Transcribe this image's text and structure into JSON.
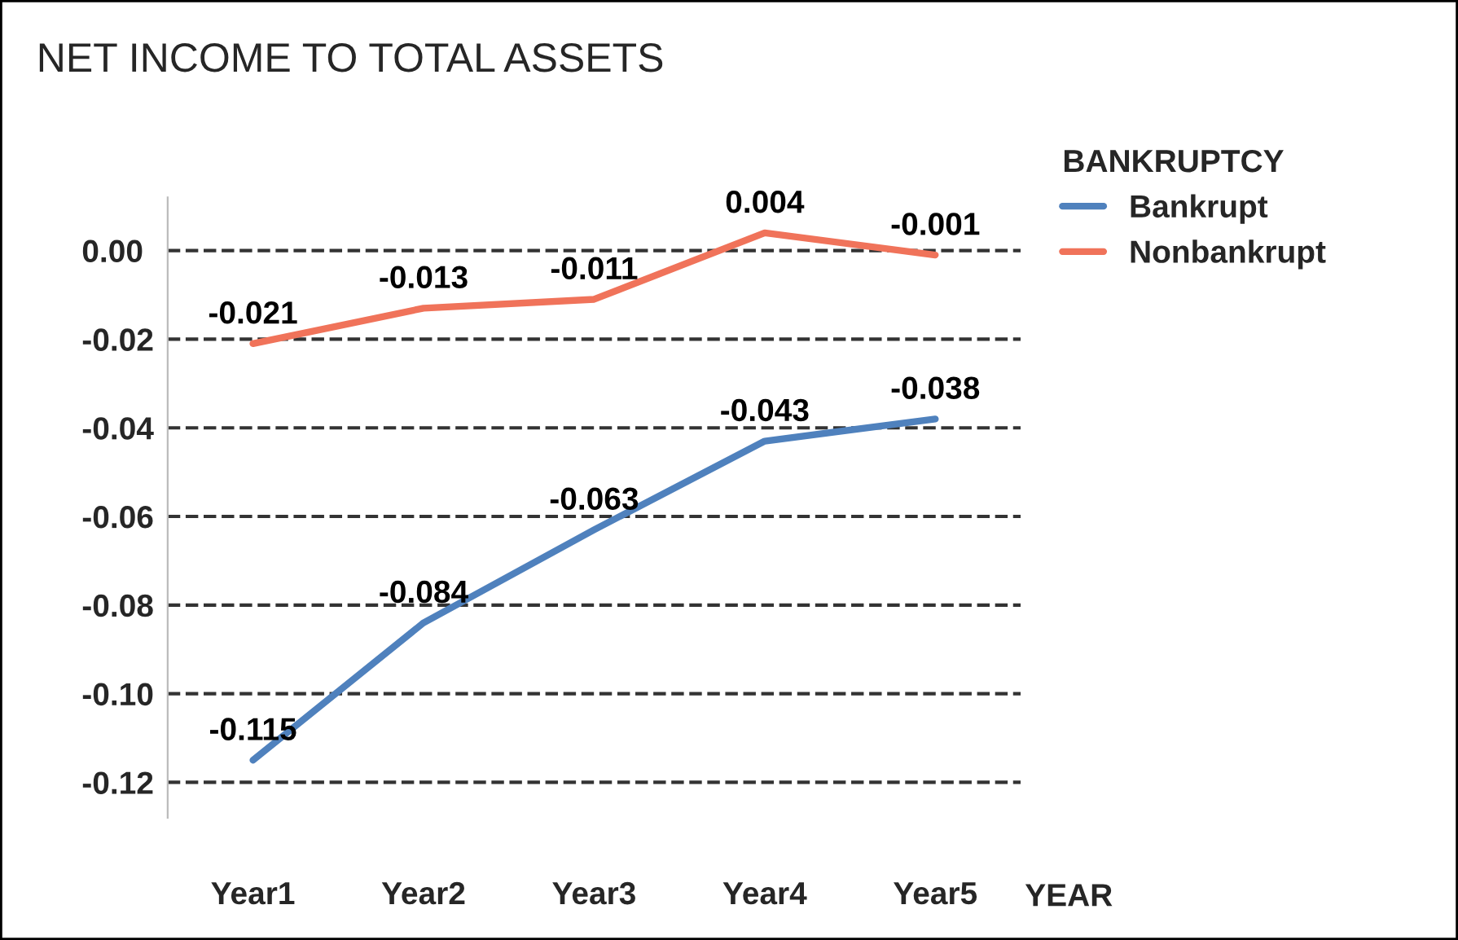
{
  "chart_data": {
    "type": "line",
    "title": "NET INCOME TO TOTAL ASSETS",
    "xlabel": "YEAR",
    "legend_title": "BANKRUPTCY",
    "categories": [
      "Year1",
      "Year2",
      "Year3",
      "Year4",
      "Year5"
    ],
    "series": [
      {
        "name": "Bankrupt",
        "color": "#4f81bd",
        "values": [
          -0.115,
          -0.084,
          -0.063,
          -0.043,
          -0.038
        ]
      },
      {
        "name": "Nonbankrupt",
        "color": "#f0735a",
        "values": [
          -0.021,
          -0.013,
          -0.011,
          0.004,
          -0.001
        ]
      }
    ],
    "ylim": [
      -0.128,
      0.012
    ],
    "yticks": [
      {
        "value": 0,
        "label": "0.00"
      },
      {
        "value": -0.02,
        "label": "-0.02"
      },
      {
        "value": -0.04,
        "label": "-0.04"
      },
      {
        "value": -0.06,
        "label": "-0.06"
      },
      {
        "value": -0.08,
        "label": "-0.08"
      },
      {
        "value": -0.1,
        "label": "-0.10"
      },
      {
        "value": -0.12,
        "label": "-0.12"
      }
    ],
    "grid": "y",
    "legend": "top right",
    "data_labels": true,
    "marker": "none",
    "line_style": "solid"
  }
}
